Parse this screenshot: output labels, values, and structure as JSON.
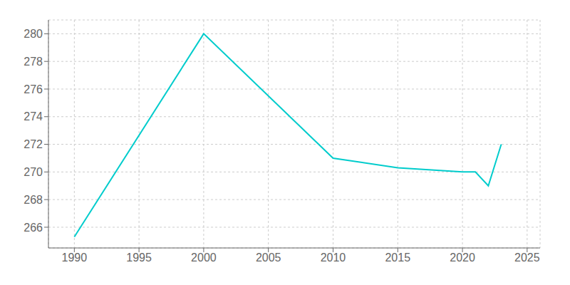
{
  "chart_data": {
    "type": "line",
    "x": [
      1990,
      2000,
      2010,
      2015,
      2020,
      2021,
      2022,
      2023
    ],
    "values": [
      265.3,
      280.0,
      271.0,
      270.3,
      270.0,
      270.0,
      269.0,
      272.0
    ],
    "color": "#00CCCC",
    "xlim": [
      1988,
      2026
    ],
    "ylim": [
      264.5,
      281.0
    ],
    "xticks": [
      1990,
      1995,
      2000,
      2005,
      2010,
      2015,
      2020,
      2025
    ],
    "yticks": [
      266,
      268,
      270,
      272,
      274,
      276,
      278,
      280
    ],
    "grid": true
  }
}
